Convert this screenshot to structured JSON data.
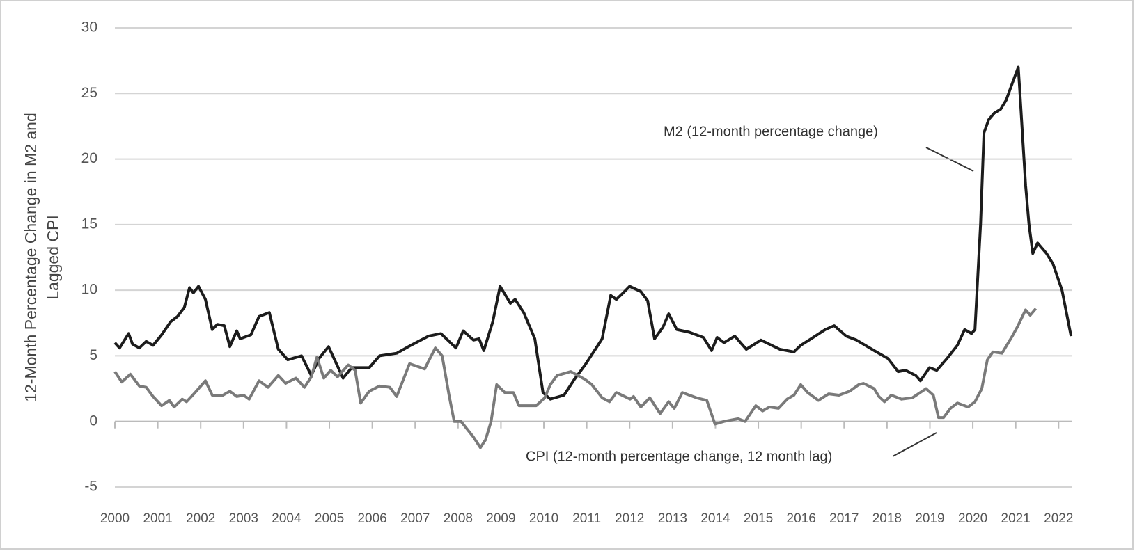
{
  "chart_data": {
    "type": "line",
    "ylabel": [
      "12-Month Percentage Change in M2 and",
      "Lagged CPI"
    ],
    "annotations": [
      "M2 (12-month percentage change)",
      "CPI (12-month percentage change, 12 month lag)"
    ],
    "xlim": [
      2000,
      2022.32
    ],
    "xticks": [
      2000,
      2001,
      2002,
      2003,
      2004,
      2005,
      2006,
      2007,
      2008,
      2009,
      2010,
      2011,
      2012,
      2013,
      2014,
      2015,
      2016,
      2017,
      2018,
      2019,
      2020,
      2021,
      2022
    ],
    "ylim": [
      -5,
      30
    ],
    "yticks": [
      -5,
      0,
      5,
      10,
      15,
      20,
      25,
      30
    ],
    "grid": true,
    "series": [
      {
        "name": "M2",
        "color": "#1c1c1c",
        "x": [
          2000.0,
          2000.11,
          2000.32,
          2000.41,
          2000.57,
          2000.73,
          2000.89,
          2001.09,
          2001.3,
          2001.46,
          2001.62,
          2001.74,
          2001.83,
          2001.95,
          2002.11,
          2002.27,
          2002.39,
          2002.55,
          2002.68,
          2002.84,
          2002.92,
          2003.17,
          2003.36,
          2003.6,
          2003.81,
          2004.03,
          2004.35,
          2004.58,
          2004.76,
          2004.98,
          2005.32,
          2005.52,
          2005.93,
          2006.17,
          2006.57,
          2006.9,
          2007.31,
          2007.6,
          2007.95,
          2008.12,
          2008.36,
          2008.49,
          2008.6,
          2008.81,
          2008.98,
          2009.22,
          2009.33,
          2009.53,
          2009.79,
          2009.98,
          2010.15,
          2010.47,
          2010.71,
          2010.96,
          2011.2,
          2011.36,
          2011.56,
          2011.69,
          2011.85,
          2012.0,
          2012.26,
          2012.42,
          2012.58,
          2012.78,
          2012.91,
          2013.1,
          2013.39,
          2013.72,
          2013.91,
          2014.04,
          2014.2,
          2014.45,
          2014.72,
          2015.06,
          2015.5,
          2015.83,
          2015.99,
          2016.23,
          2016.56,
          2016.77,
          2017.05,
          2017.29,
          2017.7,
          2018.02,
          2018.26,
          2018.43,
          2018.67,
          2018.78,
          2018.99,
          2019.16,
          2019.4,
          2019.64,
          2019.81,
          2019.97,
          2020.05,
          2020.18,
          2020.26,
          2020.37,
          2020.5,
          2020.65,
          2020.78,
          2020.89,
          2021.06,
          2021.1,
          2021.23,
          2021.31,
          2021.4,
          2021.51,
          2021.72,
          2021.87,
          2022.08,
          2022.29
        ],
        "values": [
          6.0,
          5.6,
          6.7,
          5.9,
          5.6,
          6.1,
          5.8,
          6.6,
          7.6,
          8.0,
          8.7,
          10.2,
          9.8,
          10.3,
          9.3,
          7.0,
          7.4,
          7.3,
          5.7,
          6.9,
          6.3,
          6.6,
          8.0,
          8.3,
          5.5,
          4.7,
          5.0,
          3.5,
          4.8,
          5.7,
          3.3,
          4.1,
          4.1,
          5.0,
          5.2,
          5.8,
          6.5,
          6.7,
          5.6,
          6.9,
          6.2,
          6.3,
          5.4,
          7.6,
          10.3,
          9.0,
          9.3,
          8.3,
          6.3,
          2.2,
          1.7,
          2.0,
          3.2,
          4.3,
          5.5,
          6.3,
          9.6,
          9.3,
          9.8,
          10.3,
          9.9,
          9.2,
          6.3,
          7.2,
          8.2,
          7.0,
          6.8,
          6.4,
          5.4,
          6.4,
          6.0,
          6.5,
          5.5,
          6.2,
          5.5,
          5.3,
          5.8,
          6.3,
          7.0,
          7.3,
          6.5,
          6.2,
          5.4,
          4.8,
          3.8,
          3.9,
          3.5,
          3.1,
          4.1,
          3.9,
          4.8,
          5.8,
          7.0,
          6.7,
          7.0,
          15.0,
          22.0,
          23.0,
          23.5,
          23.8,
          24.5,
          25.5,
          27.0,
          25.0,
          18.0,
          15.0,
          12.8,
          13.6,
          12.8,
          12.0,
          10.0,
          6.5
        ]
      },
      {
        "name": "CPI",
        "color": "#7a7a7a",
        "x": [
          2000.0,
          2000.16,
          2000.36,
          2000.57,
          2000.73,
          2000.89,
          2001.09,
          2001.27,
          2001.38,
          2001.57,
          2001.67,
          2001.87,
          2002.11,
          2002.27,
          2002.52,
          2002.68,
          2002.84,
          2003.0,
          2003.13,
          2003.36,
          2003.57,
          2003.81,
          2003.98,
          2004.22,
          2004.42,
          2004.58,
          2004.71,
          2004.87,
          2005.03,
          2005.19,
          2005.44,
          2005.6,
          2005.73,
          2005.93,
          2006.17,
          2006.41,
          2006.57,
          2006.87,
          2007.22,
          2007.47,
          2007.63,
          2007.79,
          2007.91,
          2008.07,
          2008.36,
          2008.52,
          2008.64,
          2008.77,
          2008.9,
          2009.09,
          2009.29,
          2009.42,
          2009.82,
          2010.02,
          2010.15,
          2010.31,
          2010.63,
          2010.96,
          2011.12,
          2011.36,
          2011.53,
          2011.69,
          2012.01,
          2012.09,
          2012.26,
          2012.47,
          2012.71,
          2012.91,
          2013.04,
          2013.23,
          2013.56,
          2013.8,
          2013.99,
          2014.2,
          2014.53,
          2014.69,
          2014.94,
          2015.1,
          2015.26,
          2015.47,
          2015.67,
          2015.83,
          2015.99,
          2016.15,
          2016.4,
          2016.64,
          2016.88,
          2017.13,
          2017.34,
          2017.45,
          2017.7,
          2017.81,
          2017.94,
          2018.1,
          2018.34,
          2018.59,
          2018.91,
          2019.08,
          2019.2,
          2019.32,
          2019.48,
          2019.64,
          2019.89,
          2020.05,
          2020.21,
          2020.34,
          2020.47,
          2020.68,
          2020.92,
          2021.04,
          2021.23,
          2021.34,
          2021.47
        ],
        "values": [
          3.8,
          3.0,
          3.6,
          2.7,
          2.6,
          1.9,
          1.2,
          1.6,
          1.1,
          1.7,
          1.5,
          2.2,
          3.1,
          2.0,
          2.0,
          2.3,
          1.9,
          2.0,
          1.7,
          3.1,
          2.6,
          3.5,
          2.9,
          3.3,
          2.6,
          3.4,
          4.9,
          3.3,
          3.9,
          3.4,
          4.3,
          3.9,
          1.4,
          2.3,
          2.7,
          2.6,
          1.9,
          4.4,
          4.0,
          5.6,
          5.0,
          2.0,
          0.0,
          0.0,
          -1.2,
          -2.0,
          -1.4,
          0.0,
          2.8,
          2.2,
          2.2,
          1.2,
          1.2,
          1.8,
          2.8,
          3.5,
          3.8,
          3.2,
          2.8,
          1.8,
          1.5,
          2.2,
          1.7,
          1.9,
          1.1,
          1.8,
          0.6,
          1.5,
          1.0,
          2.2,
          1.8,
          1.6,
          -0.2,
          0.0,
          0.2,
          0.0,
          1.2,
          0.8,
          1.1,
          1.0,
          1.7,
          2.0,
          2.8,
          2.2,
          1.6,
          2.1,
          2.0,
          2.3,
          2.8,
          2.9,
          2.5,
          1.9,
          1.5,
          2.0,
          1.7,
          1.8,
          2.5,
          2.0,
          0.3,
          0.3,
          1.0,
          1.4,
          1.1,
          1.5,
          2.5,
          4.7,
          5.3,
          5.2,
          6.5,
          7.2,
          8.5,
          8.1,
          8.6
        ]
      }
    ]
  }
}
